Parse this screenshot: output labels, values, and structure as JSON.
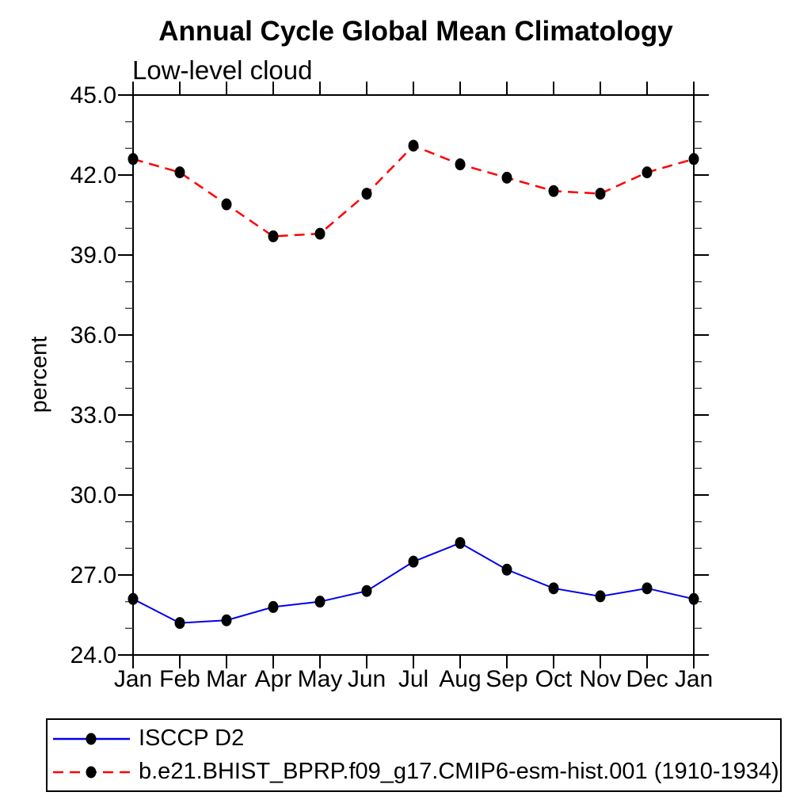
{
  "chart_data": {
    "type": "line",
    "title": "Annual Cycle Global Mean Climatology",
    "subtitle": "Low-level cloud",
    "ylabel": "percent",
    "xlabel": "",
    "categories": [
      "Jan",
      "Feb",
      "Mar",
      "Apr",
      "May",
      "Jun",
      "Jul",
      "Aug",
      "Sep",
      "Oct",
      "Nov",
      "Dec",
      "Jan"
    ],
    "series": [
      {
        "name": "ISCCP D2",
        "color": "#0000ee",
        "line_style": "solid",
        "marker": "filled-circle",
        "marker_color": "#000000",
        "values": [
          26.1,
          25.2,
          25.3,
          25.8,
          26.0,
          26.4,
          27.5,
          28.2,
          27.2,
          26.5,
          26.2,
          26.5,
          26.1
        ]
      },
      {
        "name": "b.e21.BHIST_BPRP.f09_g17.CMIP6-esm-hist.001 (1910-1934)",
        "color": "#fd0000",
        "line_style": "dashed",
        "marker": "filled-circle",
        "marker_color": "#000000",
        "values": [
          42.6,
          42.1,
          40.9,
          39.7,
          39.8,
          41.3,
          43.1,
          42.4,
          41.9,
          41.4,
          41.3,
          42.1,
          42.6
        ]
      }
    ],
    "ylim": [
      24.0,
      45.0
    ],
    "y_major_ticks": [
      24.0,
      27.0,
      30.0,
      33.0,
      36.0,
      39.0,
      42.0,
      45.0
    ],
    "y_tick_labels": [
      "24.0",
      "27.0",
      "30.0",
      "33.0",
      "36.0",
      "39.0",
      "42.0",
      "45.0"
    ],
    "y_minor_step": 1.0,
    "grid": false,
    "frame": "box-with-outward-ticks",
    "axis_color": "#000000",
    "legend_position": "bottom-left-box"
  }
}
